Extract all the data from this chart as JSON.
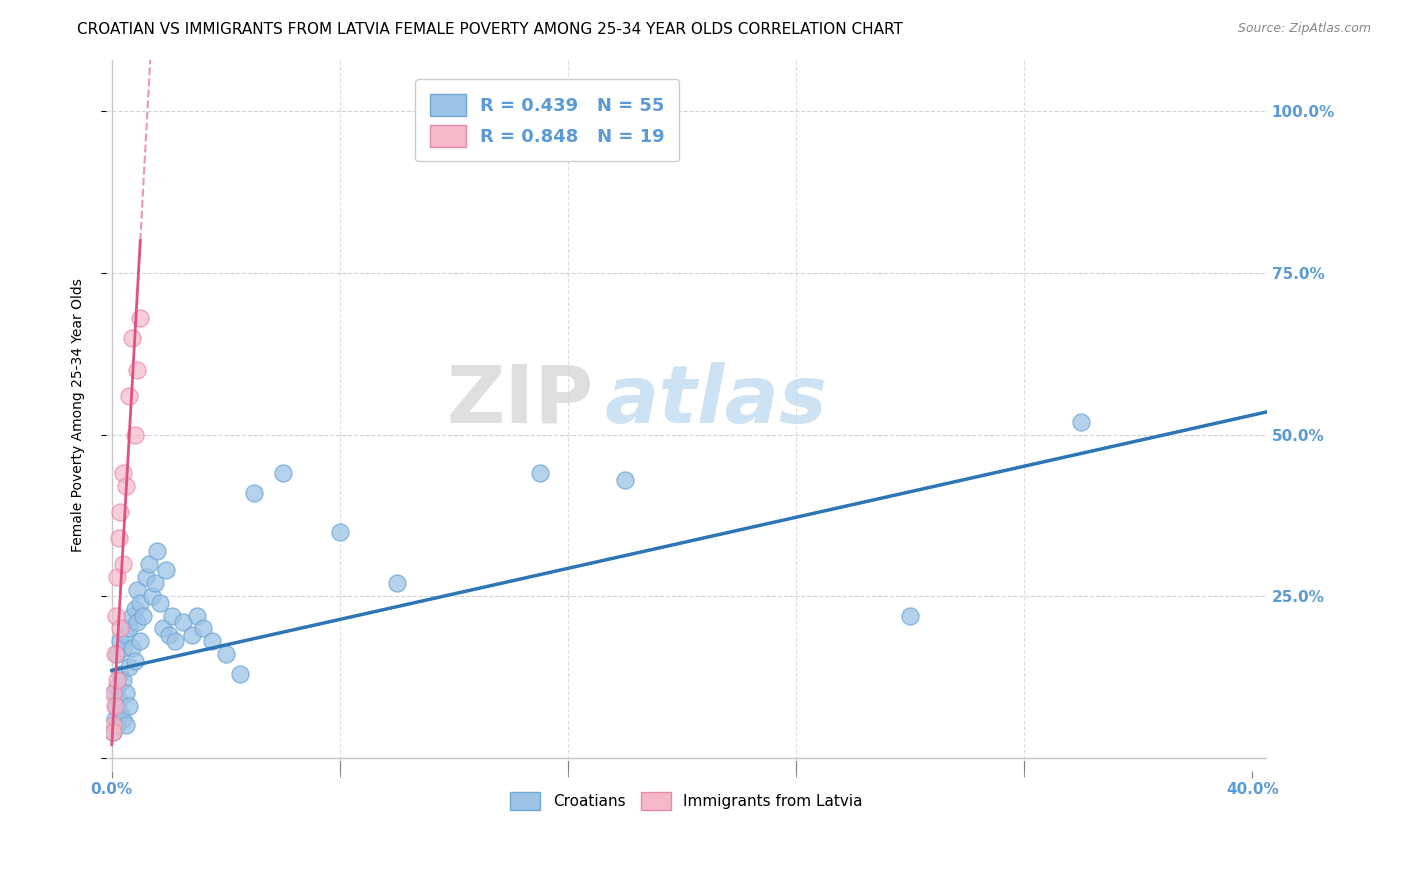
{
  "title": "CROATIAN VS IMMIGRANTS FROM LATVIA FEMALE POVERTY AMONG 25-34 YEAR OLDS CORRELATION CHART",
  "source": "Source: ZipAtlas.com",
  "ylabel": "Female Poverty Among 25-34 Year Olds",
  "xlim": [
    -0.002,
    0.405
  ],
  "ylim": [
    -0.02,
    1.08
  ],
  "xtick_positions": [
    0.0,
    0.4
  ],
  "xtick_labels": [
    "0.0%",
    "40.0%"
  ],
  "yticks": [
    0.0,
    0.25,
    0.5,
    0.75,
    1.0
  ],
  "ytick_right_labels": [
    "",
    "25.0%",
    "50.0%",
    "75.0%",
    "100.0%"
  ],
  "axis_color": "#5b9bd5",
  "grid_color": "#c8c8c8",
  "blue_color": "#9dc3e6",
  "blue_edge_color": "#6fa8d4",
  "pink_color": "#f4b8c8",
  "pink_edge_color": "#e88aaa",
  "blue_line_color": "#2e75b6",
  "pink_line_color": "#e05080",
  "legend_r_blue": "R = 0.439",
  "legend_n_blue": "N = 55",
  "legend_r_pink": "R = 0.848",
  "legend_n_pink": "N = 19",
  "croatians_label": "Croatians",
  "latvia_label": "Immigrants from Latvia",
  "blue_scatter_x": [
    0.0005,
    0.001,
    0.001,
    0.0015,
    0.002,
    0.002,
    0.002,
    0.0025,
    0.003,
    0.003,
    0.003,
    0.004,
    0.004,
    0.004,
    0.005,
    0.005,
    0.005,
    0.006,
    0.006,
    0.006,
    0.007,
    0.007,
    0.008,
    0.008,
    0.009,
    0.009,
    0.01,
    0.01,
    0.011,
    0.012,
    0.013,
    0.014,
    0.015,
    0.016,
    0.017,
    0.018,
    0.019,
    0.02,
    0.021,
    0.022,
    0.025,
    0.028,
    0.03,
    0.032,
    0.035,
    0.04,
    0.045,
    0.05,
    0.06,
    0.08,
    0.1,
    0.15,
    0.18,
    0.28,
    0.34
  ],
  "blue_scatter_y": [
    0.04,
    0.06,
    0.1,
    0.08,
    0.05,
    0.11,
    0.16,
    0.09,
    0.07,
    0.13,
    0.18,
    0.06,
    0.12,
    0.17,
    0.05,
    0.1,
    0.19,
    0.08,
    0.14,
    0.2,
    0.17,
    0.22,
    0.15,
    0.23,
    0.21,
    0.26,
    0.18,
    0.24,
    0.22,
    0.28,
    0.3,
    0.25,
    0.27,
    0.32,
    0.24,
    0.2,
    0.29,
    0.19,
    0.22,
    0.18,
    0.21,
    0.19,
    0.22,
    0.2,
    0.18,
    0.16,
    0.13,
    0.41,
    0.44,
    0.35,
    0.27,
    0.44,
    0.43,
    0.22,
    0.52
  ],
  "pink_scatter_x": [
    0.0003,
    0.0005,
    0.0005,
    0.001,
    0.001,
    0.0015,
    0.002,
    0.002,
    0.0025,
    0.003,
    0.003,
    0.004,
    0.004,
    0.005,
    0.006,
    0.007,
    0.008,
    0.009,
    0.01
  ],
  "pink_scatter_y": [
    0.05,
    0.04,
    0.1,
    0.08,
    0.16,
    0.22,
    0.12,
    0.28,
    0.34,
    0.2,
    0.38,
    0.3,
    0.44,
    0.42,
    0.56,
    0.65,
    0.5,
    0.6,
    0.68
  ],
  "blue_trend": [
    0.0,
    0.405,
    0.135,
    0.535
  ],
  "pink_trend_solid": [
    0.0,
    0.01,
    0.02,
    0.8
  ],
  "pink_trend_dashed": [
    0.01,
    0.02,
    0.8,
    1.6
  ],
  "watermark_zip": "ZIP",
  "watermark_atlas": "atlas",
  "background_color": "#ffffff",
  "title_fontsize": 11,
  "tick_fontsize": 11
}
